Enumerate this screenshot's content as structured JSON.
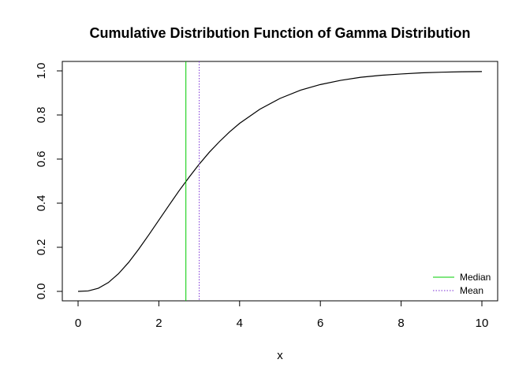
{
  "chart_data": {
    "type": "line",
    "title": "Cumulative Distribution Function of Gamma Distribution",
    "xlabel": "x",
    "ylabel": "",
    "xlim": [
      0,
      10
    ],
    "ylim": [
      0,
      1
    ],
    "x_ticks": [
      "0",
      "2",
      "4",
      "6",
      "8",
      "10"
    ],
    "y_ticks": [
      "0.0",
      "0.2",
      "0.4",
      "0.6",
      "0.8",
      "1.0"
    ],
    "grid": false,
    "legend_position": "bottom-right",
    "series": [
      {
        "x": [
          0,
          0.25,
          0.5,
          0.75,
          1,
          1.25,
          1.5,
          1.75,
          2,
          2.25,
          2.5,
          2.75,
          3,
          3.25,
          3.5,
          3.75,
          4,
          4.5,
          5,
          5.5,
          6,
          6.5,
          7,
          7.5,
          8,
          8.5,
          9,
          9.5,
          10
        ],
        "y": [
          0,
          0.002,
          0.014,
          0.04,
          0.08,
          0.131,
          0.191,
          0.256,
          0.323,
          0.39,
          0.456,
          0.518,
          0.577,
          0.631,
          0.679,
          0.723,
          0.762,
          0.826,
          0.875,
          0.912,
          0.938,
          0.957,
          0.971,
          0.98,
          0.986,
          0.991,
          0.994,
          0.996,
          0.997
        ],
        "color": "#000000"
      }
    ],
    "reference_lines": [
      {
        "name": "Median",
        "x": 2.67,
        "color": "#00cc00",
        "style": "solid"
      },
      {
        "name": "Mean",
        "x": 3.0,
        "color": "#7b2fd6",
        "style": "dotted"
      }
    ]
  }
}
